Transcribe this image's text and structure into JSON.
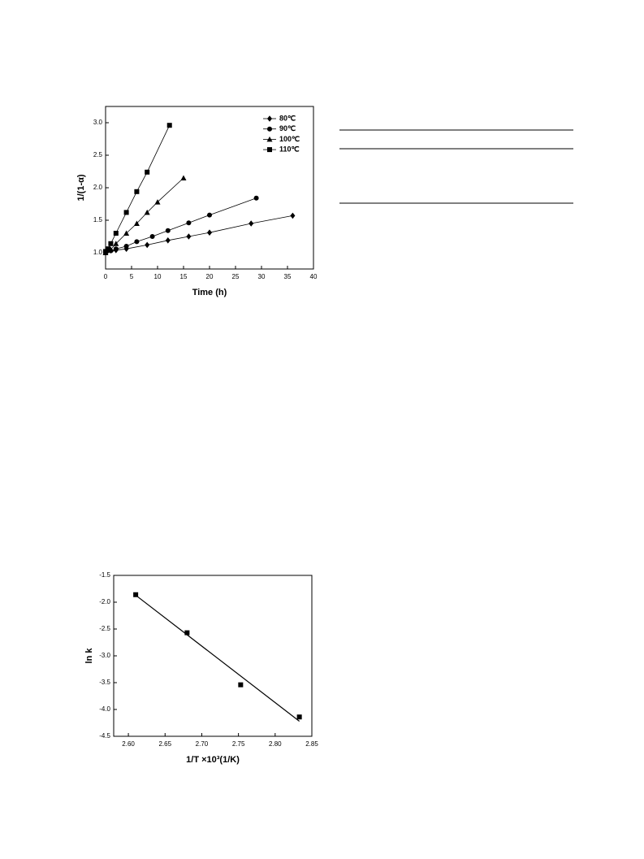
{
  "chart_data": [
    {
      "type": "scatter",
      "xlabel": "Time (h)",
      "ylabel": "1/(1-α)",
      "lines": true,
      "legend": "upper right",
      "xlim": [
        0,
        40
      ],
      "xticks": [
        0,
        5,
        10,
        15,
        20,
        25,
        30,
        35,
        40
      ],
      "ylim": [
        0.75,
        3.25
      ],
      "yticks": [
        {
          "value": 1.0,
          "label": "1.0"
        },
        {
          "value": 1.5,
          "label": "1.5"
        },
        {
          "value": 2.0,
          "label": "2.0"
        },
        {
          "value": 2.5,
          "label": "2.5"
        },
        {
          "value": 3.0,
          "label": "3.0"
        }
      ],
      "series": [
        {
          "name": "80℃",
          "marker": "diamond",
          "color": "#000000",
          "x": [
            0,
            2,
            4,
            8,
            12,
            16,
            20,
            28,
            36
          ],
          "values": [
            1.0,
            1.04,
            1.06,
            1.12,
            1.19,
            1.25,
            1.31,
            1.45,
            1.57
          ]
        },
        {
          "name": "90℃",
          "marker": "circle",
          "color": "#000000",
          "x": [
            0,
            1,
            2,
            4,
            6,
            9,
            12,
            16,
            20,
            29
          ],
          "values": [
            1.0,
            1.03,
            1.06,
            1.1,
            1.17,
            1.25,
            1.34,
            1.46,
            1.58,
            1.84
          ]
        },
        {
          "name": "100℃",
          "marker": "triangle",
          "color": "#000000",
          "x": [
            0,
            1,
            2,
            4,
            6,
            8,
            10,
            15
          ],
          "values": [
            1.0,
            1.05,
            1.14,
            1.3,
            1.45,
            1.62,
            1.78,
            2.15
          ]
        },
        {
          "name": "110℃",
          "marker": "square",
          "color": "#000000",
          "x": [
            0,
            0.5,
            1,
            2,
            4,
            6,
            8,
            12.3
          ],
          "values": [
            1.02,
            1.06,
            1.14,
            1.3,
            1.62,
            1.94,
            2.24,
            2.96
          ]
        }
      ]
    },
    {
      "type": "scatter",
      "xlabel": "1/T ×10³(1/K)",
      "ylabel": "ln k",
      "lines": false,
      "xlim": [
        2.58,
        2.85
      ],
      "xticks": [
        {
          "value": 2.6,
          "label": "2.60"
        },
        {
          "value": 2.65,
          "label": "2.65"
        },
        {
          "value": 2.7,
          "label": "2.70"
        },
        {
          "value": 2.75,
          "label": "2.75"
        },
        {
          "value": 2.8,
          "label": "2.80"
        },
        {
          "value": 2.85,
          "label": "2.85"
        }
      ],
      "ylim": [
        -4.5,
        -1.5
      ],
      "yticks": [
        -1.5,
        {
          "value": -2.0,
          "label": "-2.0"
        },
        -2.5,
        {
          "value": -3.0,
          "label": "-3.0"
        },
        -3.5,
        {
          "value": -4.0,
          "label": "-4.0"
        },
        -4.5
      ],
      "series": [
        {
          "marker": "square",
          "color": "#000000",
          "x": [
            2.61,
            2.68,
            2.753,
            2.833
          ],
          "values": [
            -1.86,
            -2.57,
            -3.54,
            -4.14
          ]
        }
      ],
      "fit_line": {
        "x": [
          2.61,
          2.833
        ],
        "values": [
          -1.87,
          -4.22
        ]
      }
    }
  ]
}
